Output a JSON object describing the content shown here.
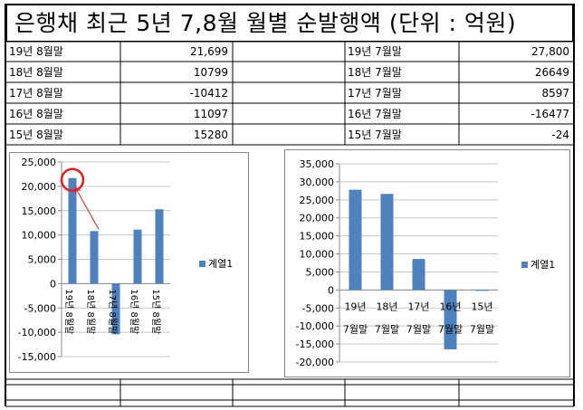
{
  "title": "은행채 최근 5년 7,8월 월별 순발행액 (단위 : 억원)",
  "table": {
    "rows": [
      {
        "aug_label": "19년 8월말",
        "aug_value": "21,699",
        "jul_label": "19년 7월말",
        "jul_value": "27,800"
      },
      {
        "aug_label": "18년 8월말",
        "aug_value": "10799",
        "jul_label": "18년 7월말",
        "jul_value": "26649"
      },
      {
        "aug_label": "17년 8월말",
        "aug_value": "-10412",
        "jul_label": "17년 7월말",
        "jul_value": "8597"
      },
      {
        "aug_label": "16년 8월말",
        "aug_value": "11097",
        "jul_label": "16년 7월말",
        "jul_value": "-16477"
      },
      {
        "aug_label": "15년 8월말",
        "aug_value": "15280",
        "jul_label": "15년 7월말",
        "jul_value": "-24"
      }
    ]
  },
  "colors": {
    "bar": "#4f81bd",
    "annotation": "#e02020",
    "gridline": "#c8c8c8",
    "axis": "#8a8a8a"
  },
  "chart_data": [
    {
      "type": "bar",
      "categories": [
        "19년 8월말",
        "18년 8월말",
        "17년 8월말",
        "16년 8월말",
        "15년 8월말"
      ],
      "series": [
        {
          "name": "계열1",
          "values": [
            21699,
            10799,
            -10412,
            11097,
            15280
          ]
        }
      ],
      "ylim": [
        -15000,
        25000
      ],
      "yticks": [
        "25,000",
        "20,000",
        "15,000",
        "10,000",
        "5,000",
        "0",
        "-5,000",
        "-10,000",
        "-15,000"
      ],
      "grid": true,
      "legend": "right",
      "annotation": "red circle on 19년 8월말 bar with arrow from 18년 8월말 bar"
    },
    {
      "type": "bar",
      "categories": [
        "19년 7월말",
        "18년 7월말",
        "17년 7월말",
        "16년 7월말",
        "15년 7월말"
      ],
      "series": [
        {
          "name": "계열1",
          "values": [
            27800,
            26649,
            8597,
            -16477,
            -24
          ]
        }
      ],
      "ylim": [
        -20000,
        35000
      ],
      "yticks": [
        "35,000",
        "30,000",
        "25,000",
        "20,000",
        "15,000",
        "10,000",
        "5,000",
        "0",
        "-5,000",
        "-10,000",
        "-15,000",
        "-20,000"
      ],
      "grid": true,
      "legend": "right"
    }
  ]
}
